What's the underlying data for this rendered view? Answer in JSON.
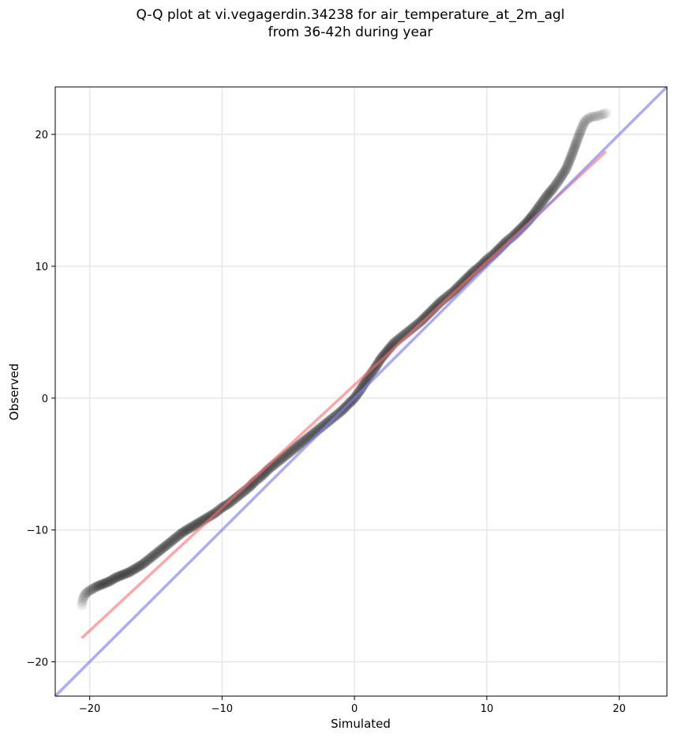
{
  "chart_data": {
    "type": "scatter",
    "title": "Q-Q plot at vi.vegagerdin.34238 for air_temperature_at_2m_agl",
    "subtitle": "from 36-42h during year",
    "xlabel": "Simulated",
    "ylabel": "Observed",
    "xlim": [
      -22.6,
      23.6
    ],
    "ylim": [
      -22.6,
      23.6
    ],
    "xticks": [
      -20,
      -10,
      0,
      10,
      20
    ],
    "yticks": [
      -20,
      -10,
      0,
      10,
      20
    ],
    "xtick_labels": [
      "−20",
      "−10",
      "0",
      "10",
      "20"
    ],
    "ytick_labels": [
      "−20",
      "−10",
      "0",
      "10",
      "20"
    ],
    "grid": true,
    "series": [
      {
        "kind": "quantile_points",
        "color": "#000000",
        "points": [
          [
            -20.6,
            -15.7
          ],
          [
            -20.5,
            -15.2
          ],
          [
            -20.3,
            -14.8
          ],
          [
            -20.0,
            -14.6
          ],
          [
            -19.5,
            -14.3
          ],
          [
            -19.0,
            -14.1
          ],
          [
            -18.5,
            -13.9
          ],
          [
            -18.0,
            -13.6
          ],
          [
            -17.5,
            -13.4
          ],
          [
            -17.0,
            -13.2
          ],
          [
            -16.5,
            -12.9
          ],
          [
            -16.0,
            -12.6
          ],
          [
            -15.5,
            -12.2
          ],
          [
            -15.0,
            -11.8
          ],
          [
            -14.5,
            -11.4
          ],
          [
            -14.0,
            -11.0
          ],
          [
            -13.5,
            -10.6
          ],
          [
            -13.0,
            -10.2
          ],
          [
            -12.5,
            -9.9
          ],
          [
            -12.0,
            -9.6
          ],
          [
            -11.5,
            -9.3
          ],
          [
            -11.0,
            -9.0
          ],
          [
            -10.5,
            -8.7
          ],
          [
            -10.0,
            -8.3
          ],
          [
            -9.5,
            -8.0
          ],
          [
            -9.0,
            -7.6
          ],
          [
            -8.5,
            -7.2
          ],
          [
            -8.0,
            -6.8
          ],
          [
            -7.5,
            -6.3
          ],
          [
            -7.0,
            -5.9
          ],
          [
            -6.5,
            -5.4
          ],
          [
            -6.0,
            -5.0
          ],
          [
            -5.5,
            -4.6
          ],
          [
            -5.0,
            -4.2
          ],
          [
            -4.5,
            -3.8
          ],
          [
            -4.0,
            -3.4
          ],
          [
            -3.5,
            -3.0
          ],
          [
            -3.0,
            -2.6
          ],
          [
            -2.5,
            -2.2
          ],
          [
            -2.0,
            -1.8
          ],
          [
            -1.5,
            -1.4
          ],
          [
            -1.0,
            -1.0
          ],
          [
            -0.5,
            -0.5
          ],
          [
            0.0,
            0.0
          ],
          [
            0.5,
            0.7
          ],
          [
            1.0,
            1.5
          ],
          [
            1.5,
            2.2
          ],
          [
            2.0,
            3.0
          ],
          [
            2.5,
            3.6
          ],
          [
            3.0,
            4.2
          ],
          [
            3.5,
            4.6
          ],
          [
            4.0,
            5.0
          ],
          [
            4.5,
            5.4
          ],
          [
            5.0,
            5.8
          ],
          [
            5.5,
            6.3
          ],
          [
            6.0,
            6.8
          ],
          [
            6.5,
            7.3
          ],
          [
            7.0,
            7.7
          ],
          [
            7.5,
            8.1
          ],
          [
            8.0,
            8.6
          ],
          [
            8.5,
            9.1
          ],
          [
            9.0,
            9.6
          ],
          [
            9.5,
            10.0
          ],
          [
            10.0,
            10.5
          ],
          [
            10.5,
            10.9
          ],
          [
            11.0,
            11.4
          ],
          [
            11.5,
            11.9
          ],
          [
            12.0,
            12.3
          ],
          [
            12.5,
            12.8
          ],
          [
            13.0,
            13.3
          ],
          [
            13.5,
            13.9
          ],
          [
            14.0,
            14.6
          ],
          [
            14.5,
            15.3
          ],
          [
            15.0,
            15.9
          ],
          [
            15.5,
            16.6
          ],
          [
            16.0,
            17.4
          ],
          [
            16.4,
            18.4
          ],
          [
            16.8,
            19.5
          ],
          [
            17.1,
            20.3
          ],
          [
            17.4,
            21.0
          ],
          [
            17.8,
            21.3
          ],
          [
            18.4,
            21.4
          ],
          [
            19.0,
            21.6
          ]
        ]
      },
      {
        "kind": "fit_line",
        "color": "#ff6a6a",
        "points": [
          [
            -20.6,
            -18.2
          ],
          [
            19.0,
            18.7
          ]
        ]
      },
      {
        "kind": "identity_line",
        "color": "#8080f0",
        "points": [
          [
            -22.6,
            -22.6
          ],
          [
            23.6,
            23.6
          ]
        ]
      }
    ]
  }
}
